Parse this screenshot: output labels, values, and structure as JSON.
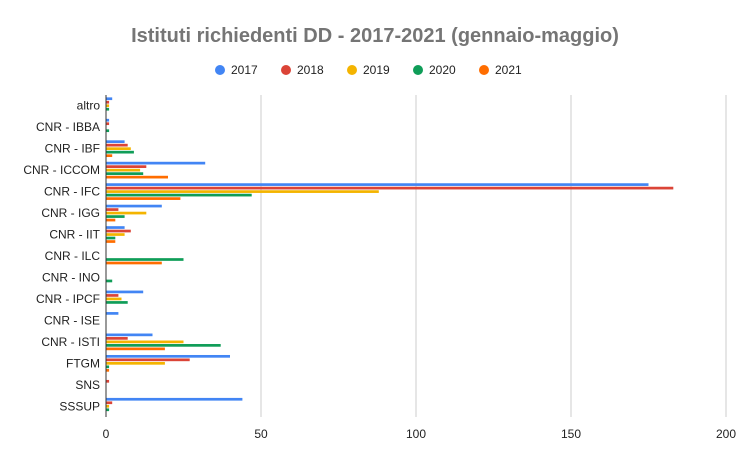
{
  "chart_data": {
    "type": "bar",
    "orientation": "horizontal",
    "title": "Istituti richiedenti DD - 2017-2021 (gennaio-maggio)",
    "xlabel": "",
    "ylabel": "",
    "xlim": [
      0,
      200
    ],
    "xticks": [
      0,
      50,
      100,
      150,
      200
    ],
    "grid": true,
    "legend_position": "top",
    "categories": [
      "altro",
      "CNR - IBBA",
      "CNR - IBF",
      "CNR - ICCOM",
      "CNR - IFC",
      "CNR - IGG",
      "CNR - IIT",
      "CNR - ILC",
      "CNR - INO",
      "CNR - IPCF",
      "CNR - ISE",
      "CNR - ISTI",
      "FTGM",
      "SNS",
      "SSSUP"
    ],
    "series": [
      {
        "name": "2017",
        "color": "#4285f4",
        "values": [
          2,
          1,
          6,
          32,
          175,
          18,
          6,
          0,
          0,
          12,
          4,
          15,
          40,
          0,
          44
        ]
      },
      {
        "name": "2018",
        "color": "#db4437",
        "values": [
          1,
          1,
          7,
          13,
          183,
          4,
          8,
          0,
          0,
          4,
          0,
          7,
          27,
          1,
          2
        ]
      },
      {
        "name": "2019",
        "color": "#f4b400",
        "values": [
          1,
          0,
          8,
          11,
          88,
          13,
          6,
          0,
          0,
          5,
          0,
          25,
          19,
          0,
          1
        ]
      },
      {
        "name": "2020",
        "color": "#0f9d58",
        "values": [
          1,
          1,
          9,
          12,
          47,
          6,
          3,
          25,
          2,
          7,
          0,
          37,
          1,
          0,
          1
        ]
      },
      {
        "name": "2021",
        "color": "#ff6d00",
        "values": [
          0,
          0,
          2,
          20,
          24,
          3,
          3,
          18,
          0,
          0,
          0,
          19,
          1,
          0,
          0
        ]
      }
    ]
  }
}
